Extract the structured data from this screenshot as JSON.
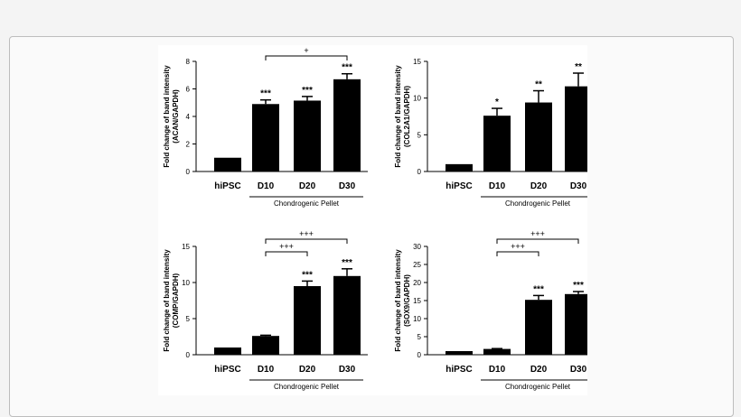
{
  "chart_data": [
    {
      "type": "bar",
      "categories": [
        "hiPSC",
        "D10",
        "D20",
        "D30"
      ],
      "values": [
        1.0,
        4.9,
        5.15,
        6.7
      ],
      "errors": [
        0,
        0.3,
        0.3,
        0.4
      ],
      "significance": [
        "",
        "***",
        "***",
        "***"
      ],
      "ylabel": "Fold change of band intensity\n(ACAN/GAPDH)",
      "ylim": [
        0,
        8
      ],
      "yticks": [
        0,
        2,
        4,
        6,
        8
      ],
      "group_label": "Chondrogenic Pellet",
      "comparisons": [
        {
          "from": "D10",
          "to": "D30",
          "label": "+"
        }
      ]
    },
    {
      "type": "bar",
      "categories": [
        "hiPSC",
        "D10",
        "D20",
        "D30"
      ],
      "values": [
        1.0,
        7.6,
        9.4,
        11.6
      ],
      "errors": [
        0,
        1.0,
        1.6,
        1.8
      ],
      "significance": [
        "",
        "*",
        "**",
        "**"
      ],
      "ylabel": "Fold change of band intensity\n(COL2A1/GAPDH)",
      "ylim": [
        0,
        15
      ],
      "yticks": [
        0,
        5,
        10,
        15
      ],
      "group_label": "Chondrogenic Pellet",
      "comparisons": []
    },
    {
      "type": "bar",
      "categories": [
        "hiPSC",
        "D10",
        "D20",
        "D30"
      ],
      "values": [
        1.0,
        2.6,
        9.5,
        10.9
      ],
      "errors": [
        0,
        0.1,
        0.7,
        1.0
      ],
      "significance": [
        "",
        "",
        "***",
        "***"
      ],
      "ylabel": "Fold change of band intensity\n(COMP/GAPDH)",
      "ylim": [
        0,
        15
      ],
      "yticks": [
        0,
        5,
        10,
        15
      ],
      "group_label": "Chondrogenic Pellet",
      "comparisons": [
        {
          "from": "D10",
          "to": "D20",
          "label": "+++"
        },
        {
          "from": "D10",
          "to": "D30",
          "label": "+++"
        }
      ]
    },
    {
      "type": "bar",
      "categories": [
        "hiPSC",
        "D10",
        "D20",
        "D30"
      ],
      "values": [
        1.0,
        1.6,
        15.2,
        16.8
      ],
      "errors": [
        0,
        0.1,
        1.2,
        0.7
      ],
      "significance": [
        "",
        "",
        "***",
        "***"
      ],
      "ylabel": "Fold change of band intensity\n(SOX9/GAPDH)",
      "ylim": [
        0,
        30
      ],
      "yticks": [
        0,
        5,
        10,
        15,
        20,
        25,
        30
      ],
      "group_label": "Chondrogenic Pellet",
      "comparisons": [
        {
          "from": "D10",
          "to": "D20",
          "label": "+++"
        },
        {
          "from": "D10",
          "to": "D30",
          "label": "+++"
        }
      ]
    }
  ]
}
